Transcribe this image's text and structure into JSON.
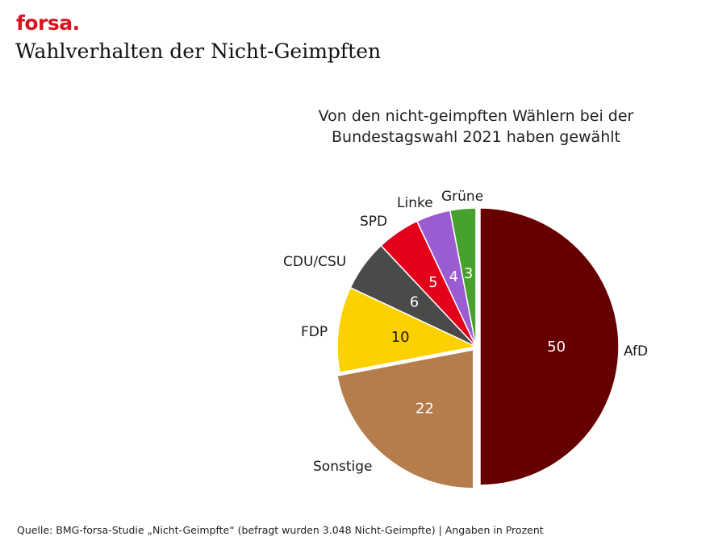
{
  "header": {
    "logo_text": "forsa.",
    "title": "Wahlverhalten der Nicht-Geimpften"
  },
  "chart_data": {
    "type": "pie",
    "subtitle_line1": "Von den nicht-geimpften Wählern bei der",
    "subtitle_line2": "Bundestagswahl 2021 haben gewählt",
    "start": "12 o'clock, clockwise",
    "slices": [
      {
        "label": "AfD",
        "value": 50,
        "color": "#660000",
        "value_color": "#ffffff",
        "exploded": true
      },
      {
        "label": "Sonstige",
        "value": 22,
        "color": "#b47d4b",
        "value_color": "#ffffff",
        "exploded": true
      },
      {
        "label": "FDP",
        "value": 10,
        "color": "#fdd100",
        "value_color": "#1a1a1a",
        "exploded": false
      },
      {
        "label": "CDU/CSU",
        "value": 6,
        "color": "#4a4a4a",
        "value_color": "#ffffff",
        "exploded": false
      },
      {
        "label": "SPD",
        "value": 5,
        "color": "#e3001b",
        "value_color": "#ffffff",
        "exploded": false
      },
      {
        "label": "Linke",
        "value": 4,
        "color": "#9a5cd0",
        "value_color": "#ffffff",
        "exploded": false
      },
      {
        "label": "Grüne",
        "value": 3,
        "color": "#46a22d",
        "value_color": "#ffffff",
        "exploded": false
      }
    ]
  },
  "footer": {
    "source": "Quelle: BMG-forsa-Studie „Nicht-Geimpfte“ (befragt wurden 3.048 Nicht-Geimpfte) | Angaben in Prozent"
  }
}
